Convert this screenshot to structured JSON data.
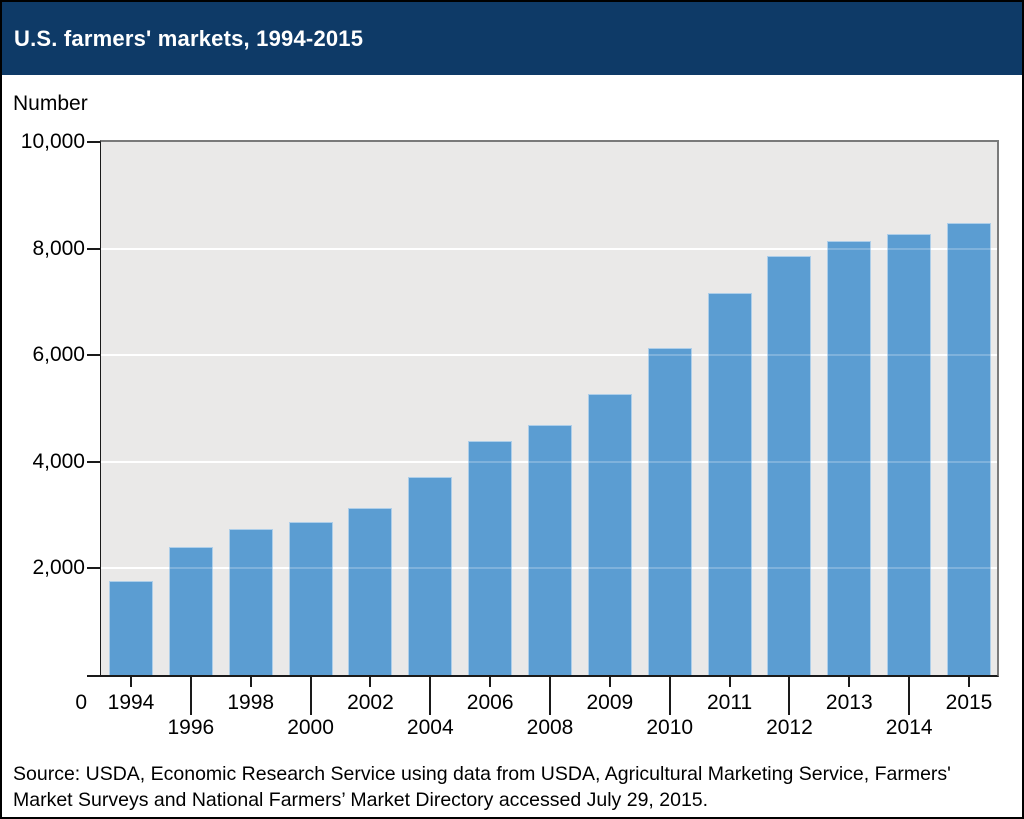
{
  "header": {
    "title": "U.S. farmers' markets, 1994-2015",
    "bg_color": "#0E3A67",
    "title_color": "#FFFFFF"
  },
  "chart_data": {
    "type": "bar",
    "title": "U.S. farmers' markets, 1994-2015",
    "ylabel": "Number",
    "xlabel": "",
    "categories": [
      "1994",
      "1996",
      "1998",
      "2000",
      "2002",
      "2004",
      "2006",
      "2008",
      "2009",
      "2010",
      "2011",
      "2012",
      "2013",
      "2014",
      "2015"
    ],
    "values": [
      1755,
      2410,
      2746,
      2863,
      3137,
      3706,
      4385,
      4685,
      5274,
      6132,
      7175,
      7864,
      8144,
      8268,
      8476
    ],
    "ylim": [
      0,
      10000
    ],
    "yticks": [
      0,
      2000,
      4000,
      6000,
      8000,
      10000
    ],
    "ytick_labels": [
      "0",
      "2,000",
      "4,000",
      "6,000",
      "8,000",
      "10,000"
    ],
    "xlabel_rows": [
      1,
      2,
      1,
      2,
      1,
      2,
      1,
      2,
      1,
      2,
      1,
      2,
      1,
      2,
      1
    ],
    "grid": true,
    "legend_position": "none",
    "bar_color": "#5B9DD2",
    "bar_edge_color": "rgba(255,255,255,0.5)",
    "plot_bg_color": "#EAE9E8",
    "plot_border_color": "#7A7A7A",
    "axis_color": "#1A1A1A",
    "gridline_color": "#FFFFFF"
  },
  "footer": {
    "source": "Source: USDA, Economic Research Service using data from USDA, Agricultural Marketing Service, Farmers' Market Surveys and National Farmers’ Market Directory accessed July 29, 2015."
  }
}
